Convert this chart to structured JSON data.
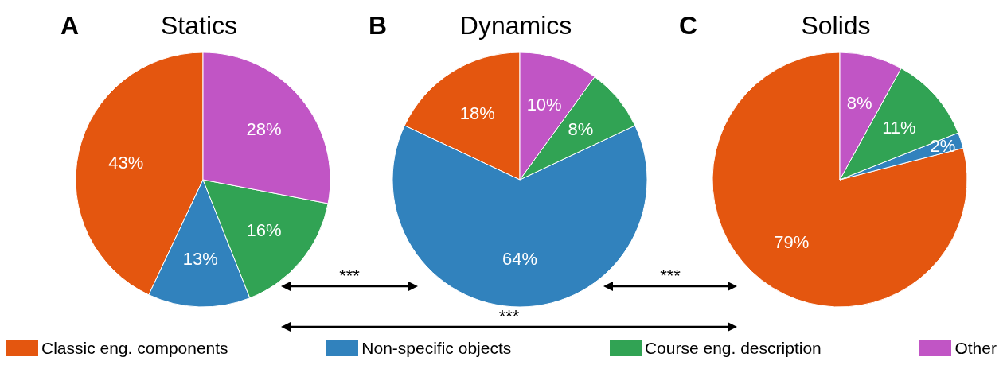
{
  "chart_data": [
    {
      "type": "pie",
      "title": "Statics",
      "annotations": [
        "A"
      ],
      "categories": [
        "Classic eng. components",
        "Non-specific objects",
        "Course eng. description",
        "Other"
      ],
      "values": [
        43,
        13,
        16,
        28
      ],
      "value_labels": [
        "43%",
        "13%",
        "16%",
        "28%"
      ],
      "colors": [
        "#e4560f",
        "#3182bd",
        "#31a354",
        "#c155c5"
      ],
      "legend": "bottom"
    },
    {
      "type": "pie",
      "title": "Dynamics",
      "annotations": [
        "B",
        "***",
        "***",
        "***"
      ],
      "categories": [
        null,
        null,
        null,
        null
      ],
      "values": [
        18,
        64,
        8,
        10
      ],
      "value_labels": [
        "18%",
        "64%",
        "8%",
        "10%"
      ],
      "colors": [
        "#e4560f",
        "#3182bd",
        "#31a354",
        "#c155c5"
      ]
    },
    {
      "type": "pie",
      "title": "Solids",
      "annotations": [
        "C"
      ],
      "categories": [
        null,
        null,
        null,
        null
      ],
      "values": [
        79,
        2,
        11,
        8
      ],
      "value_labels": [
        "79%",
        "2%",
        "11%",
        "8%"
      ],
      "colors": [
        "#e4560f",
        "#3182bd",
        "#31a354",
        "#c155c5"
      ]
    }
  ]
}
